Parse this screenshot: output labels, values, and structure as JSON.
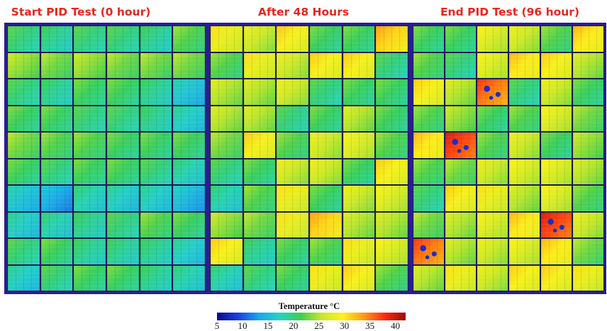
{
  "panels": [
    {
      "title": "Start PID Test (0 hour)",
      "grid": [
        [
          20,
          19,
          20,
          20,
          19,
          22
        ],
        [
          24,
          23,
          24,
          23,
          23,
          23
        ],
        [
          20,
          19,
          21,
          21,
          19,
          16
        ],
        [
          21,
          21,
          20,
          20,
          19,
          17
        ],
        [
          23,
          22,
          22,
          21,
          21,
          21
        ],
        [
          21,
          20,
          21,
          21,
          20,
          18
        ],
        [
          16,
          14,
          18,
          17,
          17,
          15
        ],
        [
          17,
          18,
          19,
          20,
          22,
          21
        ],
        [
          20,
          21,
          19,
          19,
          19,
          17
        ],
        [
          17,
          20,
          21,
          21,
          19,
          18
        ]
      ]
    },
    {
      "title": "After 48 Hours",
      "grid": [
        [
          28,
          26,
          29,
          21,
          21,
          31
        ],
        [
          22,
          28,
          26,
          29,
          29,
          20
        ],
        [
          25,
          25,
          26,
          20,
          21,
          21
        ],
        [
          25,
          25,
          20,
          21,
          25,
          21
        ],
        [
          23,
          29,
          22,
          26,
          27,
          22
        ],
        [
          20,
          21,
          26,
          26,
          21,
          29
        ],
        [
          18,
          22,
          28,
          21,
          26,
          27
        ],
        [
          24,
          23,
          28,
          31,
          25,
          25
        ],
        [
          29,
          19,
          21,
          22,
          28,
          27
        ],
        [
          18,
          20,
          21,
          28,
          29,
          22
        ]
      ]
    },
    {
      "title": "End PID Test (96 hour)",
      "grid": [
        [
          21,
          21,
          27,
          26,
          22,
          30
        ],
        [
          22,
          20,
          27,
          30,
          29,
          25
        ],
        [
          29,
          25,
          35,
          20,
          26,
          21
        ],
        [
          22,
          24,
          21,
          22,
          27,
          23
        ],
        [
          30,
          37,
          22,
          26,
          21,
          24
        ],
        [
          22,
          23,
          26,
          27,
          27,
          25
        ],
        [
          20,
          29,
          28,
          25,
          27,
          22
        ],
        [
          23,
          25,
          27,
          30,
          37,
          26
        ],
        [
          35,
          25,
          26,
          27,
          30,
          23
        ],
        [
          25,
          28,
          26,
          29,
          29,
          28
        ]
      ]
    }
  ],
  "legend": {
    "title": "Temperature °C",
    "min": 5,
    "max": 42,
    "ticks": [
      5,
      10,
      15,
      20,
      25,
      30,
      35,
      40
    ],
    "colors": [
      "#0a0a8c",
      "#1a3fe0",
      "#1aa7ee",
      "#27d3c4",
      "#3ccf50",
      "#c8e82a",
      "#fff21a",
      "#ff9a16",
      "#ff2a10",
      "#9a0a0a"
    ]
  }
}
